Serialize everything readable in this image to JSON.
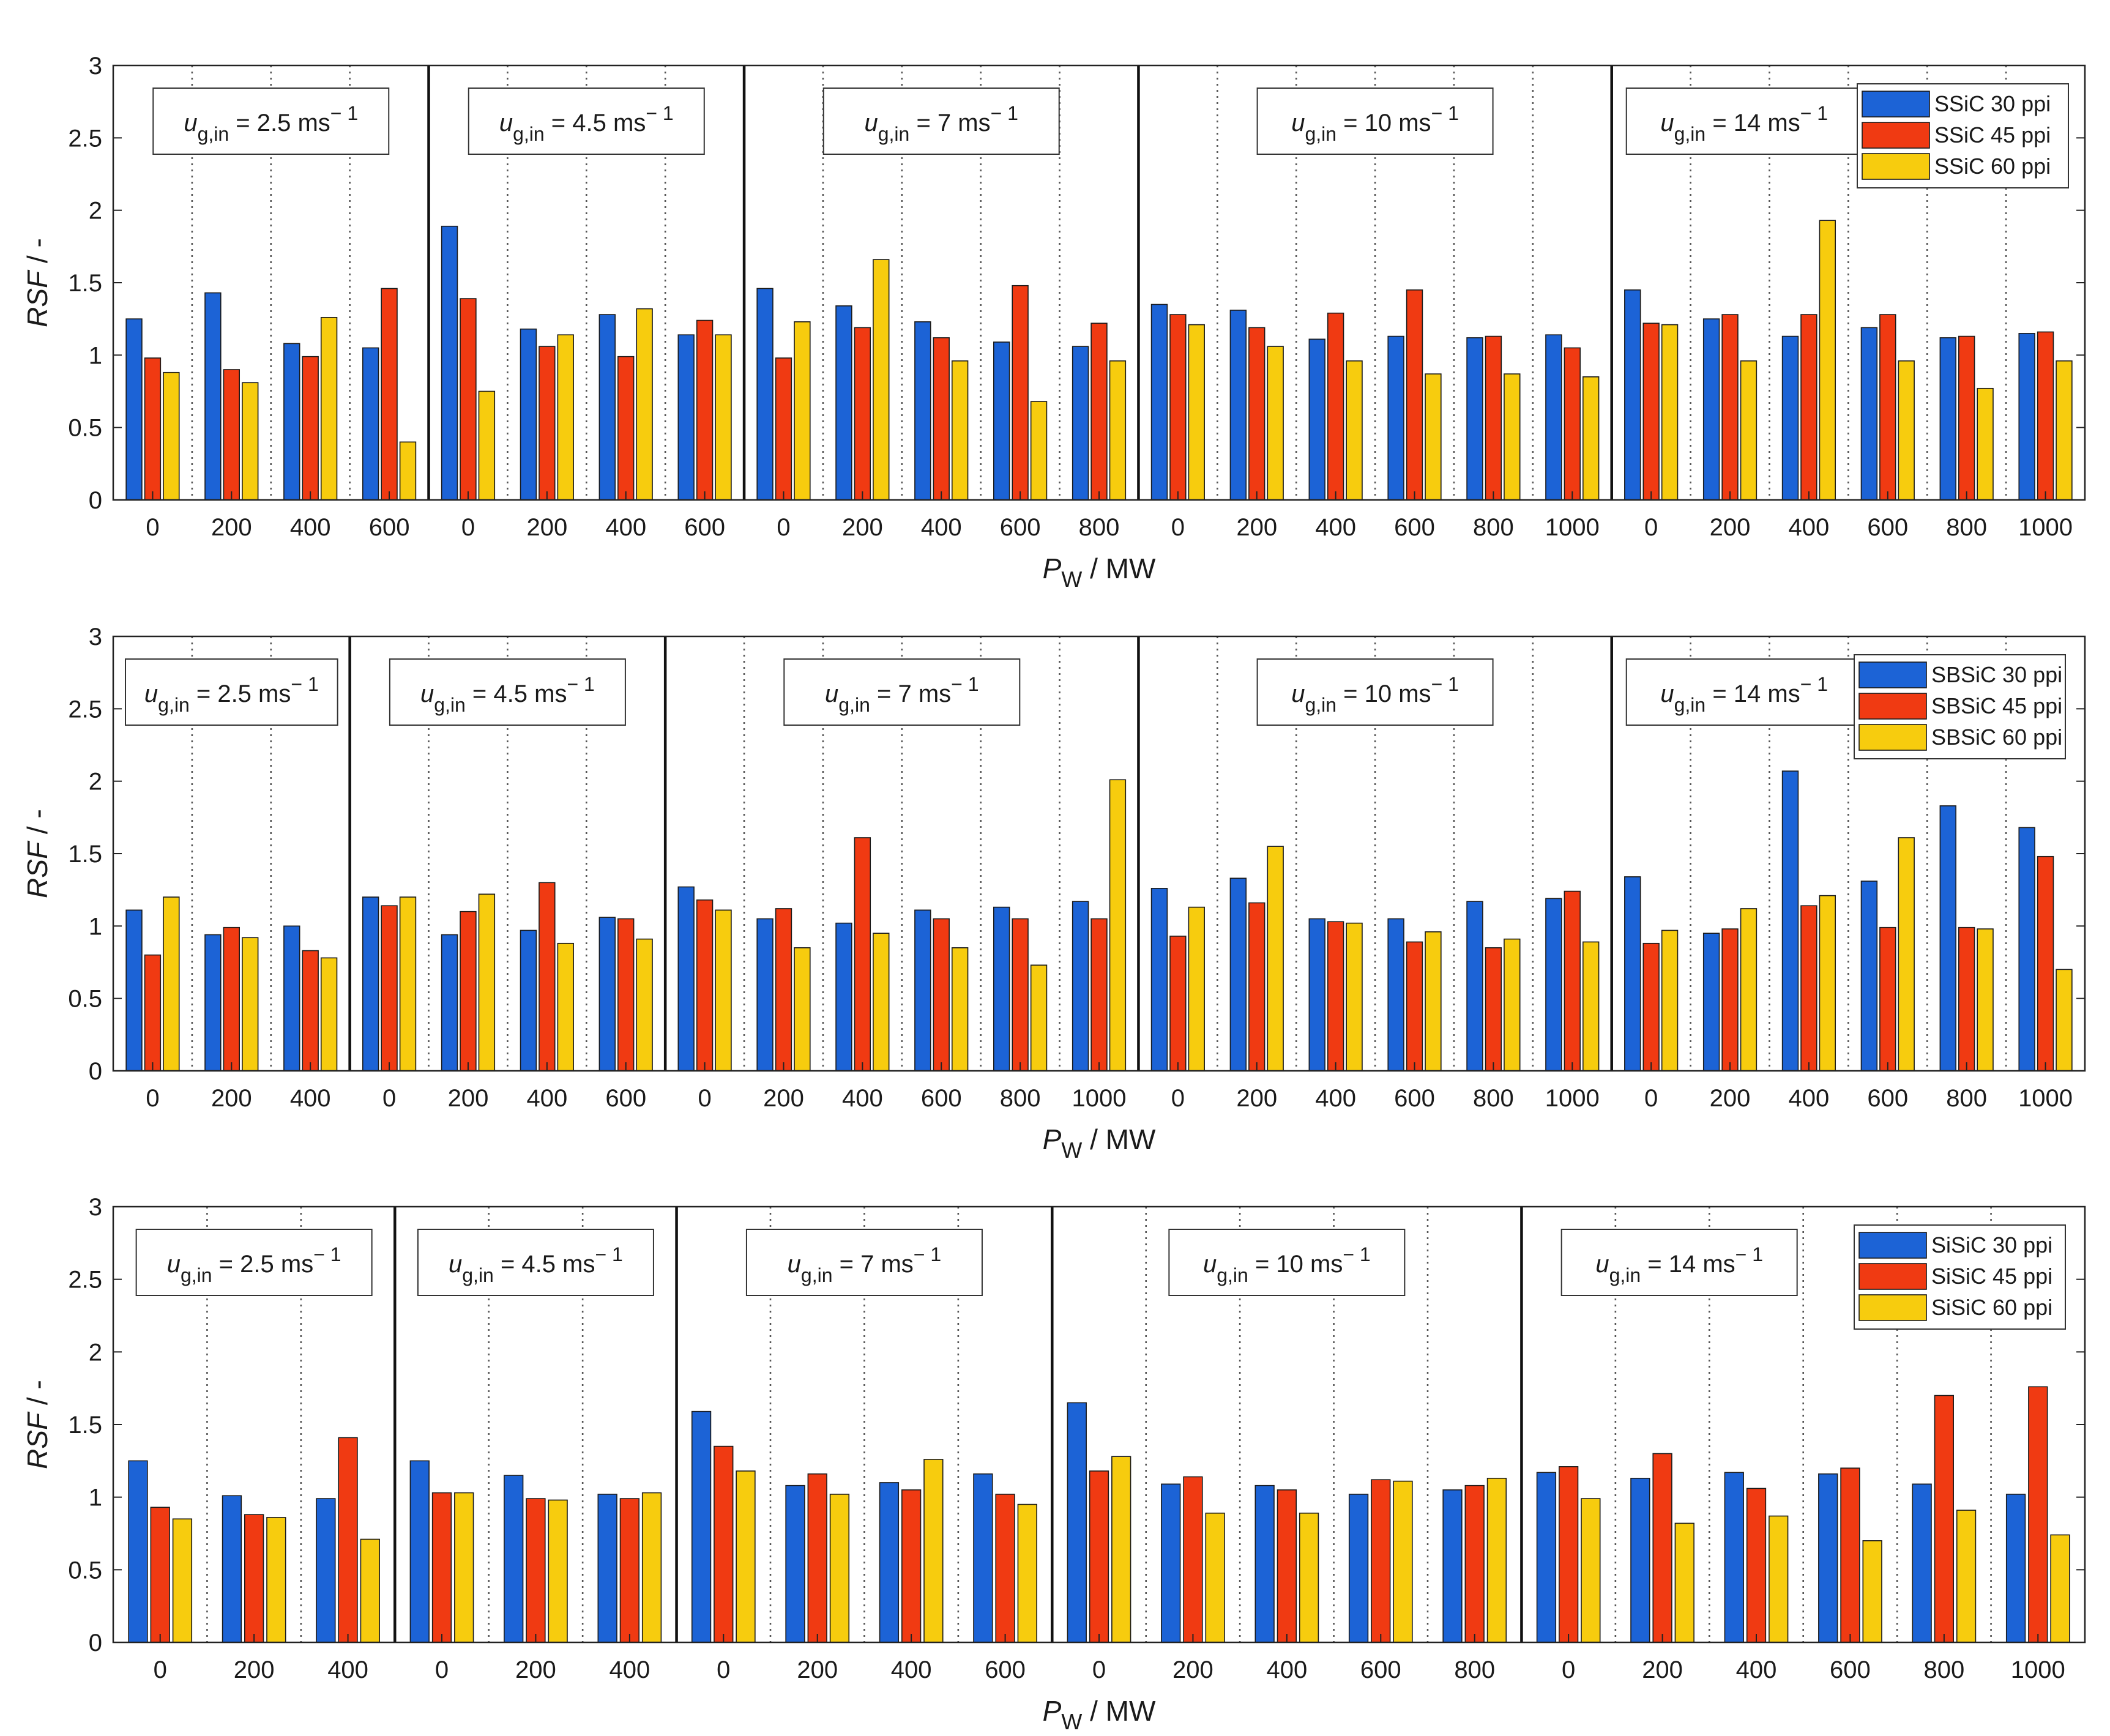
{
  "chart_data": [
    {
      "type": "bar",
      "panel": "top",
      "ylabel": "RSF / -",
      "ylabel_italic": "RSF",
      "ylabel_rest": " / -",
      "xlabel_main": "P",
      "xlabel_sub": "W",
      "xlabel_rest": " / MW",
      "ylim": [
        0,
        3
      ],
      "yticks": [
        "0",
        "0.5",
        "1",
        "1.5",
        "2",
        "2.5",
        "3"
      ],
      "series_names": [
        "SSiC 30 ppi",
        "SSiC 45 ppi",
        "SSiC 60 ppi"
      ],
      "colors": [
        "#1c63d6",
        "#f03a12",
        "#f7cc0e"
      ],
      "groups": [
        {
          "label": "2.5",
          "categories": [
            "0",
            "200",
            "400",
            "600"
          ],
          "values": [
            [
              1.25,
              0.98,
              0.88
            ],
            [
              1.43,
              0.9,
              0.81
            ],
            [
              1.08,
              0.99,
              1.26
            ],
            [
              1.05,
              1.46,
              0.4
            ]
          ]
        },
        {
          "label": "4.5",
          "categories": [
            "0",
            "200",
            "400",
            "600"
          ],
          "values": [
            [
              1.89,
              1.39,
              0.75
            ],
            [
              1.18,
              1.06,
              1.14
            ],
            [
              1.28,
              0.99,
              1.32
            ],
            [
              1.14,
              1.24,
              1.14
            ]
          ]
        },
        {
          "label": "7",
          "categories": [
            "0",
            "200",
            "400",
            "600",
            "800"
          ],
          "values": [
            [
              1.46,
              0.98,
              1.23
            ],
            [
              1.34,
              1.19,
              1.66
            ],
            [
              1.23,
              1.12,
              0.96
            ],
            [
              1.09,
              1.48,
              0.68
            ],
            [
              1.06,
              1.22,
              0.96
            ]
          ]
        },
        {
          "label": "10",
          "categories": [
            "0",
            "200",
            "400",
            "600",
            "800",
            "1000"
          ],
          "values": [
            [
              1.35,
              1.28,
              1.21
            ],
            [
              1.31,
              1.19,
              1.06
            ],
            [
              1.11,
              1.29,
              0.96
            ],
            [
              1.13,
              1.45,
              0.87
            ],
            [
              1.12,
              1.13,
              0.87
            ],
            [
              1.14,
              1.05,
              0.85
            ]
          ]
        },
        {
          "label": "14",
          "categories": [
            "0",
            "200",
            "400",
            "600",
            "800",
            "1000"
          ],
          "values": [
            [
              1.45,
              1.22,
              1.21
            ],
            [
              1.25,
              1.28,
              0.96
            ],
            [
              1.13,
              1.28,
              1.93
            ],
            [
              1.19,
              1.28,
              0.96
            ],
            [
              1.12,
              1.13,
              0.77
            ],
            [
              1.15,
              1.16,
              0.96
            ]
          ]
        }
      ]
    },
    {
      "type": "bar",
      "panel": "middle",
      "ylabel": "RSF / -",
      "ylabel_italic": "RSF",
      "ylabel_rest": " / -",
      "xlabel_main": "P",
      "xlabel_sub": "W",
      "xlabel_rest": " / MW",
      "ylim": [
        0,
        3
      ],
      "yticks": [
        "0",
        "0.5",
        "1",
        "1.5",
        "2",
        "2.5",
        "3"
      ],
      "series_names": [
        "SBSiC 30 ppi",
        "SBSiC 45 ppi",
        "SBSiC 60 ppi"
      ],
      "colors": [
        "#1c63d6",
        "#f03a12",
        "#f7cc0e"
      ],
      "groups": [
        {
          "label": "2.5",
          "categories": [
            "0",
            "200",
            "400"
          ],
          "values": [
            [
              1.11,
              0.8,
              1.2
            ],
            [
              0.94,
              0.99,
              0.92
            ],
            [
              1.0,
              0.83,
              0.78
            ]
          ]
        },
        {
          "label": "4.5",
          "categories": [
            "0",
            "200",
            "400",
            "600"
          ],
          "values": [
            [
              1.2,
              1.14,
              1.2
            ],
            [
              0.94,
              1.1,
              1.22
            ],
            [
              0.97,
              1.3,
              0.88
            ],
            [
              1.06,
              1.05,
              0.91
            ]
          ]
        },
        {
          "label": "7",
          "categories": [
            "0",
            "200",
            "400",
            "600",
            "800",
            "1000"
          ],
          "values": [
            [
              1.27,
              1.18,
              1.11
            ],
            [
              1.05,
              1.12,
              0.85
            ],
            [
              1.02,
              1.61,
              0.95
            ],
            [
              1.11,
              1.05,
              0.85
            ],
            [
              1.13,
              1.05,
              0.73
            ],
            [
              1.17,
              1.05,
              2.01
            ]
          ]
        },
        {
          "label": "10",
          "categories": [
            "0",
            "200",
            "400",
            "600",
            "800",
            "1000"
          ],
          "values": [
            [
              1.26,
              0.93,
              1.13
            ],
            [
              1.33,
              1.16,
              1.55
            ],
            [
              1.05,
              1.03,
              1.02
            ],
            [
              1.05,
              0.89,
              0.96
            ],
            [
              1.17,
              0.85,
              0.91
            ],
            [
              1.19,
              1.24,
              0.89
            ]
          ]
        },
        {
          "label": "14",
          "categories": [
            "0",
            "200",
            "400",
            "600",
            "800",
            "1000"
          ],
          "values": [
            [
              1.34,
              0.88,
              0.97
            ],
            [
              0.95,
              0.98,
              1.12
            ],
            [
              2.07,
              1.14,
              1.21
            ],
            [
              1.31,
              0.99,
              1.61
            ],
            [
              1.83,
              0.99,
              0.98
            ],
            [
              1.68,
              1.48,
              0.7
            ]
          ]
        }
      ]
    },
    {
      "type": "bar",
      "panel": "bottom",
      "ylabel": "RSF / -",
      "ylabel_italic": "RSF",
      "ylabel_rest": " / -",
      "xlabel_main": "P",
      "xlabel_sub": "W",
      "xlabel_rest": " / MW",
      "ylim": [
        0,
        3
      ],
      "yticks": [
        "0",
        "0.5",
        "1",
        "1.5",
        "2",
        "2.5",
        "3"
      ],
      "series_names": [
        "SiSiC 30 ppi",
        "SiSiC 45 ppi",
        "SiSiC 60 ppi"
      ],
      "colors": [
        "#1c63d6",
        "#f03a12",
        "#f7cc0e"
      ],
      "groups": [
        {
          "label": "2.5",
          "categories": [
            "0",
            "200",
            "400"
          ],
          "values": [
            [
              1.25,
              0.93,
              0.85
            ],
            [
              1.01,
              0.88,
              0.86
            ],
            [
              0.99,
              1.41,
              0.71
            ]
          ]
        },
        {
          "label": "4.5",
          "categories": [
            "0",
            "200",
            "400"
          ],
          "values": [
            [
              1.25,
              1.03,
              1.03
            ],
            [
              1.15,
              0.99,
              0.98
            ],
            [
              1.02,
              0.99,
              1.03
            ]
          ]
        },
        {
          "label": "7",
          "categories": [
            "0",
            "200",
            "400",
            "600"
          ],
          "values": [
            [
              1.59,
              1.35,
              1.18
            ],
            [
              1.08,
              1.16,
              1.02
            ],
            [
              1.1,
              1.05,
              1.26
            ],
            [
              1.16,
              1.02,
              0.95
            ]
          ]
        },
        {
          "label": "10",
          "categories": [
            "0",
            "200",
            "400",
            "600",
            "800"
          ],
          "values": [
            [
              1.65,
              1.18,
              1.28
            ],
            [
              1.09,
              1.14,
              0.89
            ],
            [
              1.08,
              1.05,
              0.89
            ],
            [
              1.02,
              1.12,
              1.11
            ],
            [
              1.05,
              1.08,
              1.13
            ]
          ]
        },
        {
          "label": "14",
          "categories": [
            "0",
            "200",
            "400",
            "600",
            "800",
            "1000"
          ],
          "values": [
            [
              1.17,
              1.21,
              0.99
            ],
            [
              1.13,
              1.3,
              0.82
            ],
            [
              1.17,
              1.06,
              0.87
            ],
            [
              1.16,
              1.2,
              0.7
            ],
            [
              1.09,
              1.7,
              0.91
            ],
            [
              1.02,
              1.76,
              0.74
            ]
          ]
        }
      ]
    }
  ],
  "annotation": {
    "var_italic": "u",
    "var_sub": "g,in",
    "unit_prefix": " ms",
    "unit_exp": "− 1",
    "eq": " = "
  }
}
